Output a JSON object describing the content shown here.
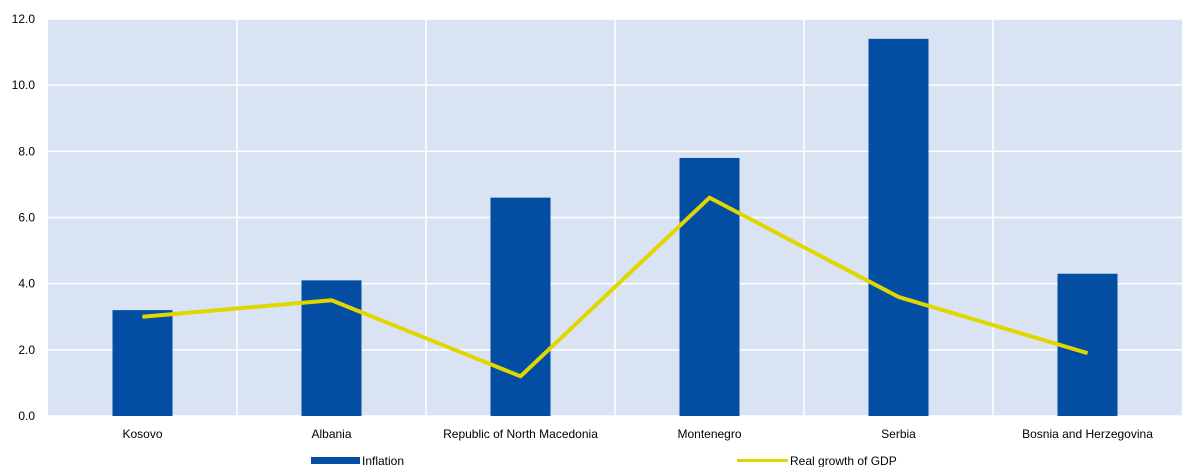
{
  "chart_data": {
    "type": "bar",
    "categories": [
      "Kosovo",
      "Albania",
      "Republic of North Macedonia",
      "Montenegro",
      "Serbia",
      "Bosnia and Herzegovina"
    ],
    "ylim": [
      0,
      12
    ],
    "yticks": [
      "0.0",
      "2.0",
      "4.0",
      "6.0",
      "8.0",
      "10.0",
      "12.0"
    ],
    "grid": true,
    "legend_position": "bottom",
    "series": [
      {
        "name": "Inflation",
        "kind": "bar",
        "color": "#034ea2",
        "values": [
          3.2,
          4.1,
          6.6,
          7.8,
          11.4,
          4.3
        ]
      },
      {
        "name": "Real growth of GDP",
        "kind": "line",
        "color": "#e0d600",
        "values": [
          3.0,
          3.5,
          1.2,
          6.6,
          3.6,
          1.9
        ]
      }
    ],
    "colors": {
      "plot_background": "#dae3f3",
      "gridline": "#ffffff"
    }
  }
}
